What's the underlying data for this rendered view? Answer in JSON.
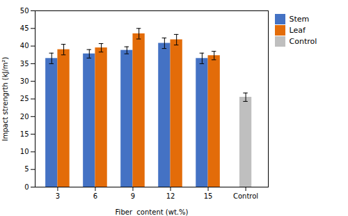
{
  "chart_data": {
    "type": "bar",
    "categories": [
      "3",
      "6",
      "9",
      "12",
      "15",
      "Control"
    ],
    "series": [
      {
        "name": "Stem",
        "color": "#4472C4",
        "values": [
          36.5,
          37.8,
          38.8,
          40.8,
          36.5,
          null
        ],
        "errors": [
          1.5,
          1.2,
          1.0,
          1.5,
          1.5,
          null
        ]
      },
      {
        "name": "Leaf",
        "color": "#E36C09",
        "values": [
          39.0,
          39.5,
          43.5,
          41.8,
          37.3,
          null
        ],
        "errors": [
          1.5,
          1.2,
          1.5,
          1.5,
          1.2,
          null
        ]
      },
      {
        "name": "Control",
        "color": "#BFBFBF",
        "values": [
          null,
          null,
          null,
          null,
          null,
          25.5
        ],
        "errors": [
          null,
          null,
          null,
          null,
          null,
          1.2
        ]
      }
    ],
    "xlabel": "Fiber  content (wt.%)",
    "ylabel": "Impact strengrth (kJ/m²)",
    "ylim": [
      0,
      50
    ],
    "yticks": [
      0,
      5,
      10,
      15,
      20,
      25,
      30,
      35,
      40,
      45,
      50
    ],
    "grid": false,
    "legend": "right"
  }
}
